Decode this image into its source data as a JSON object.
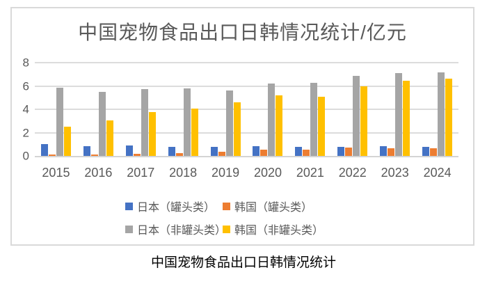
{
  "title": "中国宠物食品出口日韩情况统计/亿元",
  "caption": "中国宠物食品出口日韩情况统计",
  "colors": {
    "title_text": "#595959",
    "axis_text": "#595959",
    "gridline": "#dcdcdc",
    "frame_border": "#d9d9d9",
    "caption_text": "#000000"
  },
  "chart_data": {
    "type": "bar",
    "title": "中国宠物食品出口日韩情况统计/亿元",
    "xlabel": "",
    "ylabel": "亿元",
    "ylim": [
      0,
      8
    ],
    "yticks": [
      0,
      2,
      4,
      6,
      8
    ],
    "grid": true,
    "legend_position": "bottom",
    "categories": [
      "2015",
      "2016",
      "2017",
      "2018",
      "2019",
      "2020",
      "2021",
      "2022",
      "2023",
      "2024"
    ],
    "series": [
      {
        "name": "日本（罐头类）",
        "color": "#4472c4",
        "values": [
          1.0,
          0.85,
          0.9,
          0.8,
          0.8,
          0.85,
          0.8,
          0.8,
          0.85,
          0.8
        ]
      },
      {
        "name": "韩国（罐头类）",
        "color": "#ed7d31",
        "values": [
          0.1,
          0.15,
          0.2,
          0.25,
          0.35,
          0.55,
          0.55,
          0.7,
          0.65,
          0.65
        ]
      },
      {
        "name": "日本（非罐头类）",
        "color": "#a5a5a5",
        "values": [
          5.85,
          5.5,
          5.75,
          5.8,
          5.6,
          6.2,
          6.25,
          6.85,
          7.1,
          7.15
        ]
      },
      {
        "name": "韩国（非罐头类）",
        "color": "#ffc000",
        "values": [
          2.5,
          3.05,
          3.75,
          4.05,
          4.6,
          5.2,
          5.05,
          6.0,
          6.45,
          6.65
        ]
      }
    ]
  }
}
